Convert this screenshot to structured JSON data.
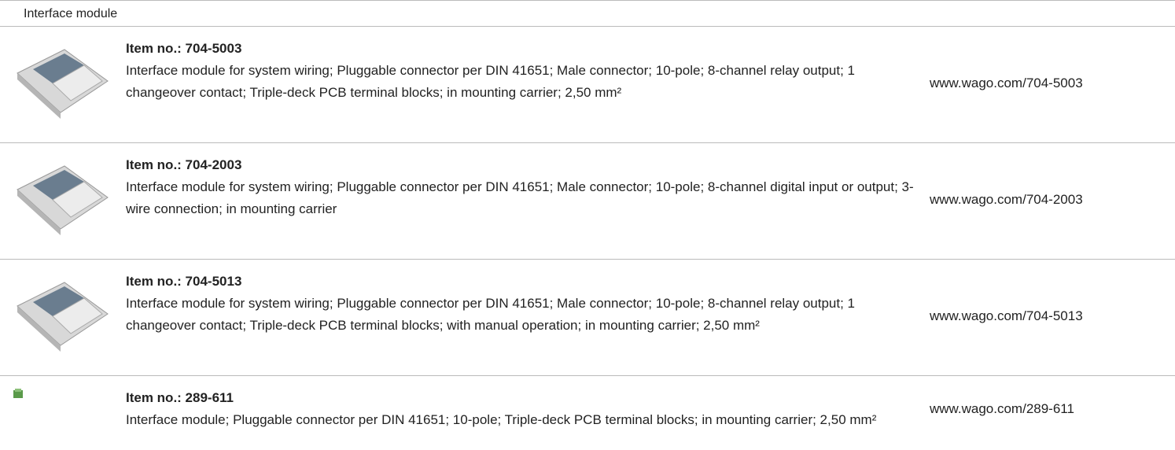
{
  "header": {
    "title": "Interface module"
  },
  "items": [
    {
      "item_no": "Item no.: 704-5003",
      "description": "Interface module for system wiring; Pluggable connector per DIN 41651; Male connector; 10-pole; 8-channel relay output; 1 changeover contact; Triple-deck PCB terminal blocks; in mounting carrier; 2,50 mm²",
      "url": "www.wago.com/704-5003"
    },
    {
      "item_no": "Item no.: 704-2003",
      "description": "Interface module for system wiring; Pluggable connector per DIN 41651; Male connector; 10-pole; 8-channel digital input or output; 3-wire connection; in mounting carrier",
      "url": "www.wago.com/704-2003"
    },
    {
      "item_no": "Item no.: 704-5013",
      "description": "Interface module for system wiring; Pluggable connector per DIN 41651; Male connector; 10-pole; 8-channel relay output; 1 changeover contact; Triple-deck PCB terminal blocks; with manual operation; in mounting carrier; 2,50 mm²",
      "url": "www.wago.com/704-5013"
    },
    {
      "item_no": "Item no.: 289-611",
      "description": "Interface module; Pluggable connector per DIN 41651; 10-pole; Triple-deck PCB terminal blocks; in mounting carrier; 2,50 mm²",
      "url": "www.wago.com/289-611"
    }
  ]
}
